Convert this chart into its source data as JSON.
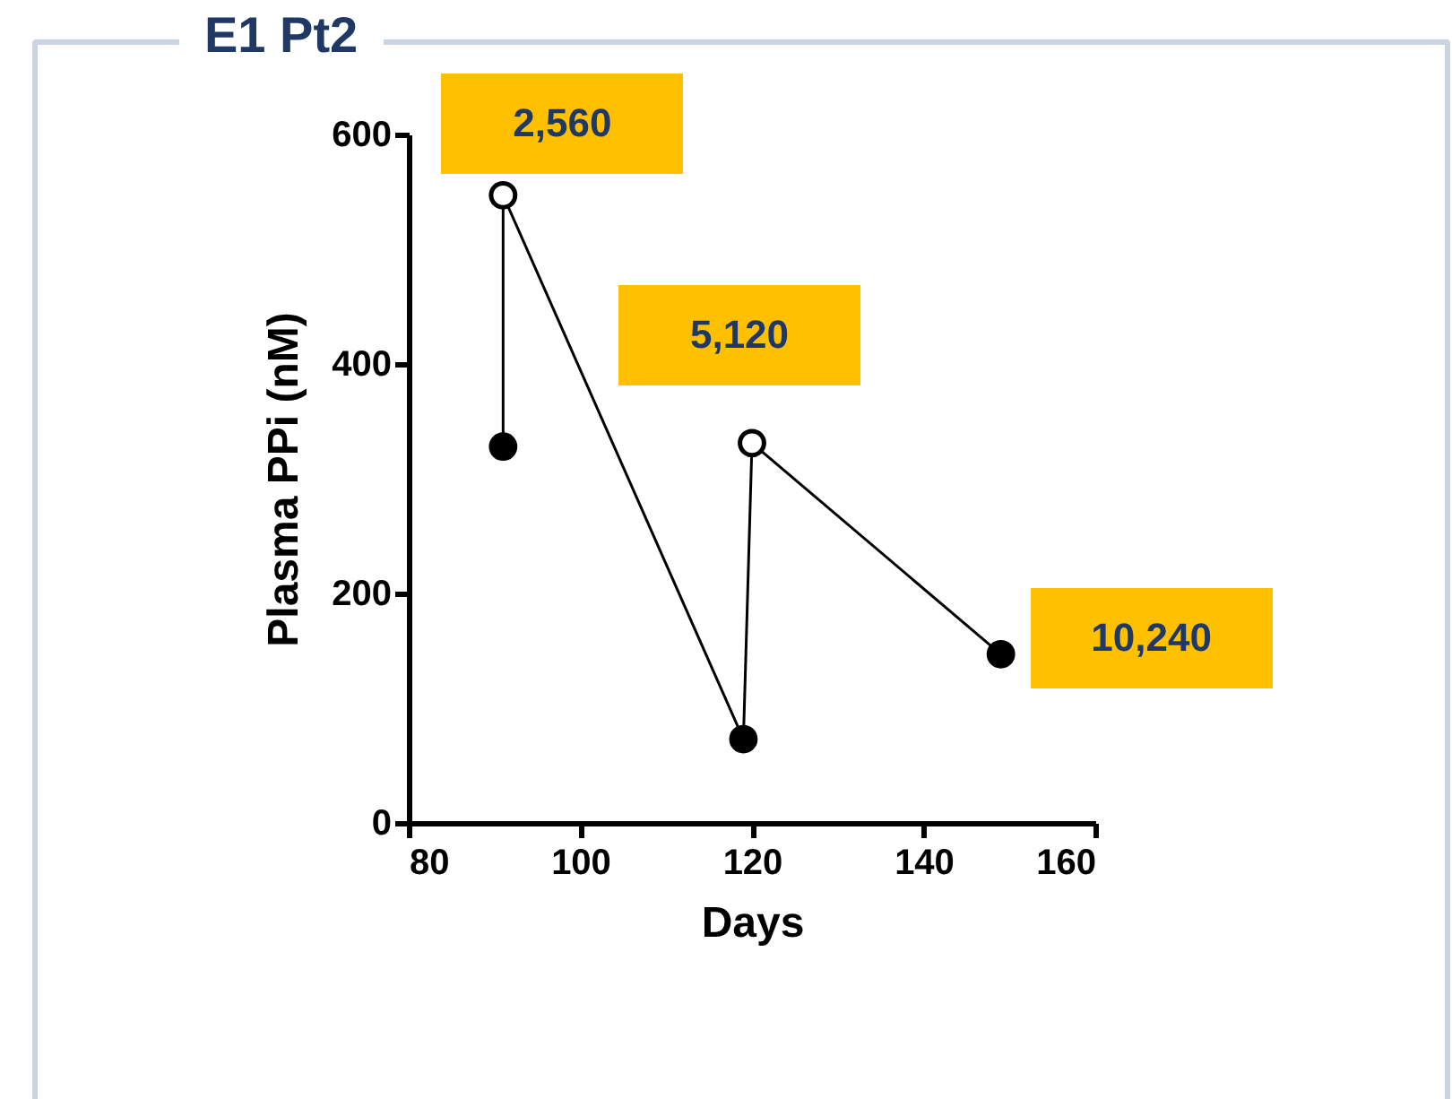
{
  "chart_data": {
    "type": "line",
    "title": "E1 Pt2",
    "xlabel": "Days",
    "ylabel": "Plasma PPi (nM)",
    "xlim": [
      80,
      160
    ],
    "xticks": [
      80,
      100,
      120,
      140,
      160
    ],
    "ylim": [
      0,
      600
    ],
    "yticks": [
      0,
      200,
      400,
      600
    ],
    "grid": false,
    "marker": "circle",
    "line_style": "solid",
    "series": [
      {
        "marker": "none",
        "color": "#000000",
        "x": [
          91,
          91,
          119,
          120,
          149
        ],
        "values": [
          328,
          547,
          73,
          331,
          147
        ]
      },
      {
        "type": "scatter",
        "color": "#000000",
        "x": [
          91,
          119,
          149
        ],
        "values": [
          328,
          73,
          147
        ]
      },
      {
        "type": "scatter",
        "color": "#ffffff",
        "x": [
          91,
          120
        ],
        "values": [
          547,
          331
        ]
      }
    ],
    "annotations": [
      {
        "text": "2,560",
        "x": 91,
        "y": 547
      },
      {
        "text": "5,120",
        "x": 120,
        "y": 331
      },
      {
        "text": "10,240",
        "x": 149,
        "y": 147
      }
    ]
  }
}
